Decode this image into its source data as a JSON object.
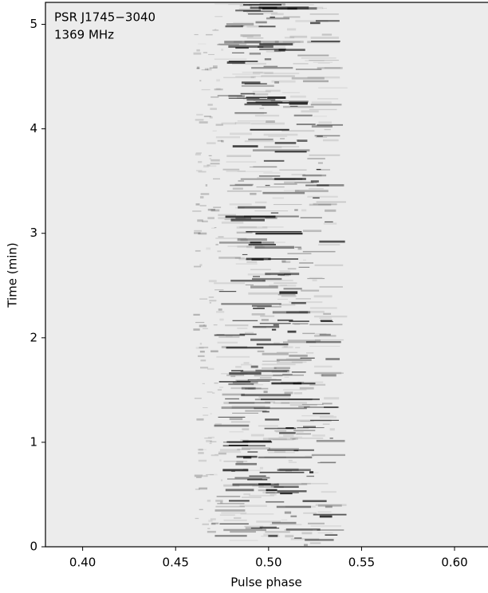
{
  "chart_data": {
    "type": "image",
    "xlabel": "Pulse phase",
    "ylabel": "Time (min)",
    "annotation": [
      "PSR J1745−3040",
      "1369 MHz"
    ],
    "xlim": [
      0.38,
      0.618
    ],
    "ylim": [
      0,
      5.21
    ],
    "xticks": [
      {
        "value": 0.4,
        "label": "0.40"
      },
      {
        "value": 0.45,
        "label": "0.45"
      },
      {
        "value": 0.5,
        "label": "0.50"
      },
      {
        "value": 0.55,
        "label": "0.55"
      },
      {
        "value": 0.6,
        "label": "0.60"
      }
    ],
    "yticks": [
      0,
      1,
      2,
      3,
      4,
      5
    ],
    "colormap": "gray_r"
  }
}
